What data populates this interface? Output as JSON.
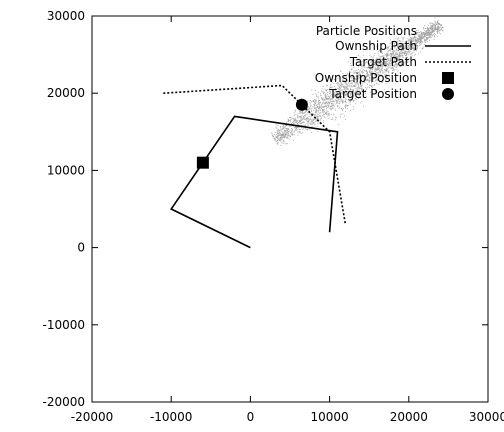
{
  "chart_data": {
    "type": "line",
    "title": "",
    "xlabel": "",
    "ylabel": "",
    "xlim": [
      -20000,
      30000
    ],
    "ylim": [
      -20000,
      30000
    ],
    "xticks": [
      -20000,
      -10000,
      0,
      10000,
      20000,
      30000
    ],
    "yticks": [
      -20000,
      -10000,
      0,
      10000,
      20000,
      30000
    ],
    "xtick_labels": [
      "-20000",
      "-10000",
      "0",
      "10000",
      "20000",
      "30000"
    ],
    "ytick_labels": [
      "-20000",
      "-10000",
      "0",
      "10000",
      "20000",
      "30000"
    ],
    "grid": false,
    "legend_position": "top-right",
    "legend": [
      {
        "label": "Particle Positions",
        "style": "dots"
      },
      {
        "label": "Ownship Path",
        "style": "solid"
      },
      {
        "label": "Target Path",
        "style": "dotted"
      },
      {
        "label": "Ownship Position",
        "style": "square"
      },
      {
        "label": "Target Position",
        "style": "circle"
      }
    ],
    "ownship_path": {
      "x": [
        0,
        -10000,
        -6000,
        -2000,
        11000,
        10000
      ],
      "y": [
        0,
        5000,
        11000,
        17000,
        15000,
        2000
      ]
    },
    "target_path": {
      "x": [
        -11000,
        4000,
        10000,
        12000
      ],
      "y": [
        20000,
        21000,
        15000,
        3000
      ]
    },
    "ownship_position": {
      "x": -6000,
      "y": 11000
    },
    "target_position": {
      "x": 6500,
      "y": 18500
    },
    "particle_cloud": {
      "start": {
        "x": 3000,
        "y": 14000
      },
      "end": {
        "x": 24000,
        "y": 29000
      },
      "count": 2600
    },
    "colors": {
      "lines": "#000000",
      "particles": "#555555",
      "background": "#ffffff"
    }
  }
}
